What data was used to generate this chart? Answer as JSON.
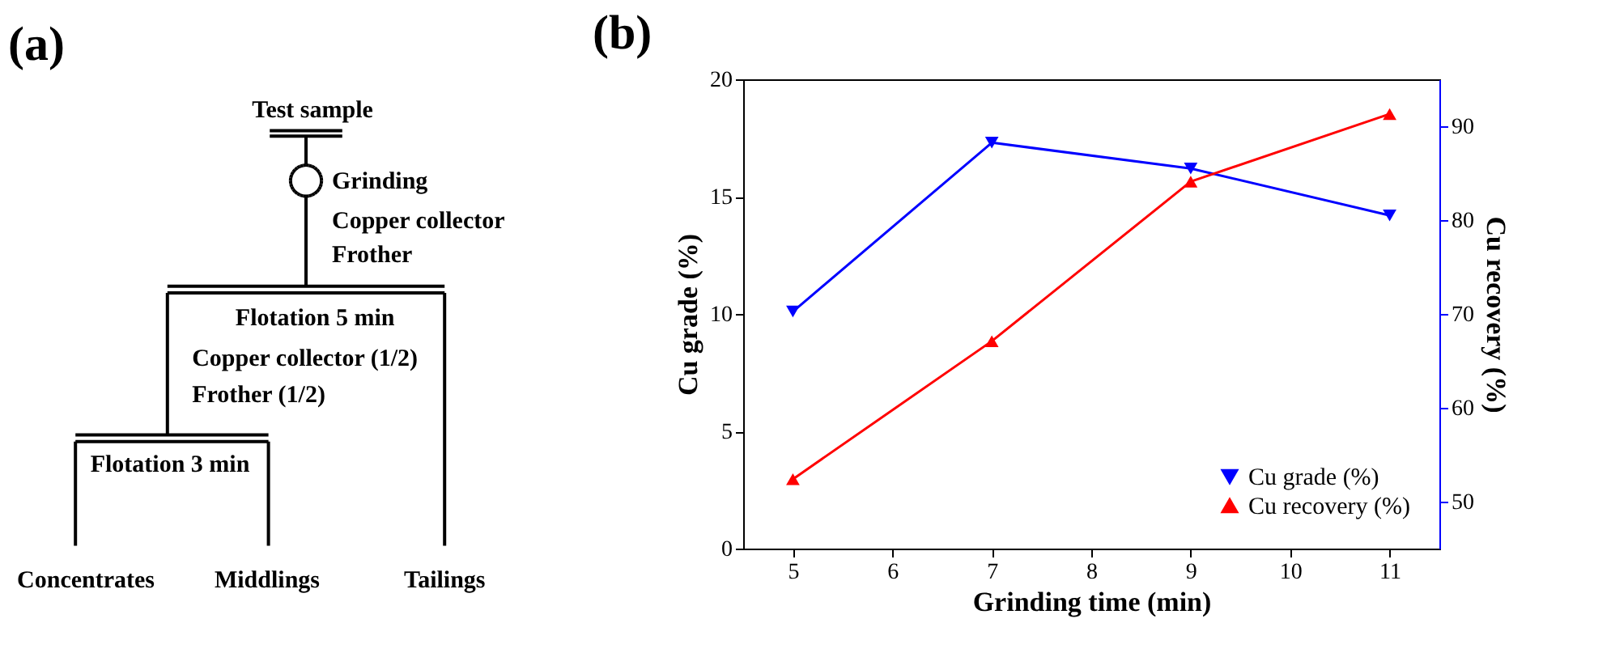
{
  "chart_data": [
    {
      "type": "other",
      "title": "(a)",
      "annotations": [
        "Test sample",
        "Grinding",
        "Copper collector",
        "Frother",
        "Flotation 5 min",
        "Copper collector (1/2)",
        "Frother (1/2)",
        "Flotation 3 min",
        "Concentrates",
        "Middlings",
        "Tailings"
      ]
    },
    {
      "type": "line",
      "title": "(b)",
      "xlabel": "Grinding time (min)",
      "ylabel": "Cu grade (%)",
      "y2label": "Cu recovery (%)",
      "x": [
        5,
        7,
        9,
        11
      ],
      "series": [
        {
          "name": "Cu grade (%)",
          "color": "#0000ff",
          "marker": "triangle-down",
          "values": [
            10.1,
            17.3,
            16.2,
            14.2
          ]
        },
        {
          "name": "Cu recovery (%)",
          "color": "#ff0000",
          "marker": "triangle",
          "axis": "y2",
          "values": [
            52.4,
            67.1,
            84.1,
            91.3
          ]
        }
      ],
      "xlim": [
        4.5,
        11.5
      ],
      "xticks": [
        5,
        6,
        7,
        8,
        9,
        10,
        11
      ],
      "ylim": [
        0,
        20
      ],
      "yticks": [
        0,
        5,
        10,
        15,
        20
      ],
      "y2lim": [
        45,
        95
      ],
      "y2ticks": [
        50,
        60,
        70,
        80,
        90
      ],
      "legend": "bottom right"
    }
  ]
}
